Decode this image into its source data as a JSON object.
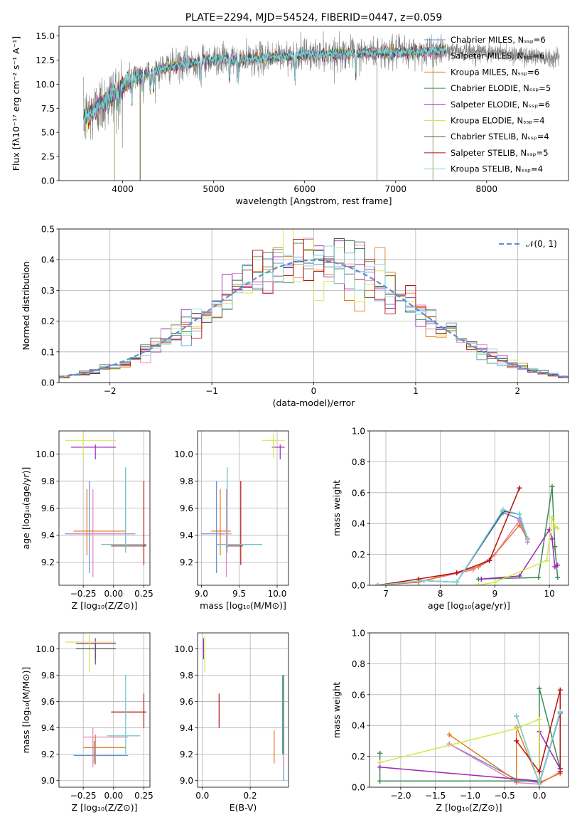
{
  "chart_data": [
    {
      "id": "spectrum",
      "type": "line",
      "title": "PLATE=2294, MJD=54524, FIBERID=0447, z=0.059",
      "xlabel": "wavelength [Angstrom, rest frame]",
      "ylabel": "Flux [fλ10⁻¹⁷ erg cm⁻² s⁻¹ A⁻¹]",
      "xlim": [
        3300,
        8900
      ],
      "ylim": [
        0,
        16
      ],
      "xticks": [
        4000,
        5000,
        6000,
        7000,
        8000
      ],
      "yticks": [
        0.0,
        2.5,
        5.0,
        7.5,
        10.0,
        12.5,
        15.0
      ],
      "grid": false,
      "legend_position": "top-right",
      "legend": [
        {
          "label": "Chabrier MILES, Nₛₛₚ=6",
          "color": "#5b8fd6"
        },
        {
          "label": "Salpeter MILES, Nₛₛₚ=6",
          "color": "#e87fc0"
        },
        {
          "label": "Kroupa MILES, Nₛₛₚ=6",
          "color": "#e07a1f"
        },
        {
          "label": "Chabrier ELODIE, Nₛₛₚ=5",
          "color": "#3e8a55"
        },
        {
          "label": "Salpeter ELODIE, Nₛₛₚ=6",
          "color": "#9b2ab5"
        },
        {
          "label": "Kroupa ELODIE, Nₛₛₚ=4",
          "color": "#d4e84a"
        },
        {
          "label": "Chabrier STELIB, Nₛₛₚ=4",
          "color": "#505050"
        },
        {
          "label": "Salpeter STELIB, Nₛₛₚ=5",
          "color": "#b5120e"
        },
        {
          "label": "Kroupa STELIB, Nₛₛₚ=4",
          "color": "#7fd6dc"
        }
      ],
      "continuum": {
        "x": [
          3570,
          3650,
          3750,
          3850,
          3950,
          4050,
          4150,
          4300,
          4500,
          4700,
          4900,
          5100,
          5300,
          5600,
          5900,
          6200,
          6500,
          6800,
          7100,
          7400,
          7600,
          7800,
          8000,
          8200,
          8400,
          8600,
          8800
        ],
        "y": [
          6.3,
          7.0,
          7.8,
          8.6,
          9.4,
          10.3,
          10.8,
          11.2,
          11.8,
          12.1,
          12.5,
          12.6,
          12.5,
          12.8,
          13.0,
          13.1,
          13.2,
          13.3,
          13.3,
          13.4,
          13.5,
          13.4,
          13.3,
          13.2,
          13.0,
          12.9,
          12.8
        ]
      }
    },
    {
      "id": "residuals",
      "type": "histogram",
      "xlabel": "(data-model)/error",
      "ylabel": "Normed distribution",
      "xlim": [
        -2.5,
        2.5
      ],
      "ylim": [
        0,
        0.5
      ],
      "xticks": [
        -2,
        -1,
        0,
        1,
        2
      ],
      "yticks": [
        0.0,
        0.1,
        0.2,
        0.3,
        0.4,
        0.5
      ],
      "grid": true,
      "legend_position": "top-right",
      "legend": [
        {
          "label": "𝒩(0, 1)",
          "color": "#5b8fd6"
        }
      ],
      "bins": 50,
      "series_colors": [
        "#5b8fd6",
        "#e87fc0",
        "#e07a1f",
        "#3e8a55",
        "#9b2ab5",
        "#d4e84a",
        "#505050",
        "#b5120e",
        "#7fd6dc"
      ]
    },
    {
      "id": "age-vs-Z",
      "type": "errorbar",
      "xlabel": "Z [log₁₀(Z/Z⊙)]",
      "ylabel": "age  [log₁₀(age/yr)]",
      "xlim": [
        -0.45,
        0.3
      ],
      "ylim": [
        9.03,
        10.17
      ],
      "xticks": [
        -0.25,
        0.0,
        0.25
      ],
      "xticklabels": [
        "−0.25",
        "0.00",
        "0.25"
      ],
      "yticks": [
        9.2,
        9.4,
        9.6,
        9.8,
        10.0
      ],
      "grid": true,
      "points": [
        {
          "color": "#5b8fd6",
          "x": -0.2,
          "y": 9.41,
          "x_lo": -0.4,
          "x_hi": 0.18,
          "y_lo": 9.12,
          "y_hi": 9.8
        },
        {
          "color": "#e87fc0",
          "x": -0.17,
          "y": 9.41,
          "x_lo": -0.37,
          "x_hi": 0.18,
          "y_lo": 9.09,
          "y_hi": 9.74
        },
        {
          "color": "#e07a1f",
          "x": -0.22,
          "y": 9.43,
          "x_lo": -0.33,
          "x_hi": 0.1,
          "y_lo": 9.25,
          "y_hi": 9.74
        },
        {
          "color": "#3e8a55",
          "x": 0.1,
          "y": 9.33,
          "x_lo": -0.1,
          "x_hi": 0.27,
          "y_lo": 9.27,
          "y_hi": 9.9
        },
        {
          "color": "#9b2ab5",
          "x": -0.15,
          "y": 10.05,
          "x_lo": -0.35,
          "x_hi": 0.02,
          "y_lo": 9.96,
          "y_hi": 10.07
        },
        {
          "color": "#d4e84a",
          "x": -0.25,
          "y": 10.1,
          "x_lo": -0.4,
          "x_hi": 0.02,
          "y_lo": 9.97,
          "y_hi": 10.15
        },
        {
          "color": "#505050",
          "x": 0.1,
          "y": 9.33,
          "x_lo": -0.1,
          "x_hi": 0.25,
          "y_lo": 9.28,
          "y_hi": 9.9
        },
        {
          "color": "#b5120e",
          "x": 0.25,
          "y": 9.32,
          "x_lo": -0.02,
          "x_hi": 0.27,
          "y_lo": 9.18,
          "y_hi": 9.8
        },
        {
          "color": "#7fd6dc",
          "x": 0.1,
          "y": 9.33,
          "x_lo": -0.1,
          "x_hi": 0.25,
          "y_lo": 9.27,
          "y_hi": 9.9
        }
      ]
    },
    {
      "id": "age-vs-mass",
      "type": "errorbar",
      "xlabel": "mass [log₁₀(M/M⊙)]",
      "ylabel": "",
      "xlim": [
        8.95,
        10.15
      ],
      "ylim": [
        9.03,
        10.17
      ],
      "xticks": [
        9.0,
        9.5,
        10.0
      ],
      "yticks": [
        9.2,
        9.4,
        9.6,
        9.8,
        10.0
      ],
      "grid": true,
      "points": [
        {
          "color": "#5b8fd6",
          "x": 9.2,
          "y": 9.41,
          "x_lo": 9.0,
          "x_hi": 9.3,
          "y_lo": 9.12,
          "y_hi": 9.8
        },
        {
          "color": "#e87fc0",
          "x": 9.33,
          "y": 9.41,
          "x_lo": 9.2,
          "x_hi": 9.4,
          "y_lo": 9.09,
          "y_hi": 9.74
        },
        {
          "color": "#e07a1f",
          "x": 9.25,
          "y": 9.43,
          "x_lo": 9.13,
          "x_hi": 9.39,
          "y_lo": 9.25,
          "y_hi": 9.74
        },
        {
          "color": "#3e8a55",
          "x": 9.34,
          "y": 9.33,
          "x_lo": 9.2,
          "x_hi": 9.8,
          "y_lo": 9.27,
          "y_hi": 9.9
        },
        {
          "color": "#9b2ab5",
          "x": 10.04,
          "y": 10.05,
          "x_lo": 9.93,
          "x_hi": 10.1,
          "y_lo": 9.96,
          "y_hi": 10.07
        },
        {
          "color": "#d4e84a",
          "x": 9.95,
          "y": 10.1,
          "x_lo": 9.8,
          "x_hi": 10.1,
          "y_lo": 9.97,
          "y_hi": 10.15
        },
        {
          "color": "#505050",
          "x": 9.34,
          "y": 9.33,
          "x_lo": 9.2,
          "x_hi": 9.8,
          "y_lo": 9.28,
          "y_hi": 9.9
        },
        {
          "color": "#b5120e",
          "x": 9.52,
          "y": 9.32,
          "x_lo": 9.33,
          "x_hi": 9.55,
          "y_lo": 9.18,
          "y_hi": 9.8
        },
        {
          "color": "#7fd6dc",
          "x": 9.34,
          "y": 9.33,
          "x_lo": 9.2,
          "x_hi": 9.8,
          "y_lo": 9.27,
          "y_hi": 9.9
        }
      ]
    },
    {
      "id": "weight-vs-age",
      "type": "line",
      "xlabel": "age  [log₁₀(age/yr)]",
      "ylabel": "mass weight",
      "xlim": [
        6.7,
        10.35
      ],
      "ylim": [
        0,
        1
      ],
      "xticks": [
        7,
        8,
        9,
        10
      ],
      "yticks": [
        0.0,
        0.2,
        0.4,
        0.6,
        0.8,
        1.0
      ],
      "grid": true,
      "series": [
        {
          "color": "#5b8fd6",
          "x": [
            6.85,
            7.7,
            8.3,
            9.15,
            9.45,
            9.6
          ],
          "y": [
            0.0,
            0.03,
            0.02,
            0.47,
            0.43,
            0.3
          ]
        },
        {
          "color": "#e87fc0",
          "x": [
            6.85,
            7.7,
            8.6,
            9.0,
            9.45,
            9.6
          ],
          "y": [
            0.0,
            0.03,
            0.1,
            0.2,
            0.42,
            0.28
          ]
        },
        {
          "color": "#e07a1f",
          "x": [
            6.85,
            7.6,
            8.7,
            8.9,
            9.45,
            9.6
          ],
          "y": [
            0.0,
            0.02,
            0.12,
            0.16,
            0.39,
            0.3
          ]
        },
        {
          "color": "#3e8a55",
          "x": [
            8.7,
            9.8,
            10.05,
            10.1,
            10.15
          ],
          "y": [
            0.04,
            0.05,
            0.64,
            0.25,
            0.05
          ]
        },
        {
          "color": "#9b2ab5",
          "x": [
            8.75,
            9.45,
            10.0,
            10.05,
            10.1,
            10.15
          ],
          "y": [
            0.04,
            0.06,
            0.36,
            0.3,
            0.12,
            0.13
          ]
        },
        {
          "color": "#d4e84a",
          "x": [
            8.7,
            9.0,
            9.95,
            10.05,
            10.1,
            10.15
          ],
          "y": [
            0.0,
            0.02,
            0.16,
            0.44,
            0.38,
            0.37
          ]
        },
        {
          "color": "#505050",
          "x": [
            6.85,
            7.7,
            8.3,
            9.15,
            9.45,
            9.6
          ],
          "y": [
            0.0,
            0.03,
            0.02,
            0.48,
            0.46,
            0.3
          ]
        },
        {
          "color": "#b5120e",
          "x": [
            6.85,
            7.6,
            8.3,
            8.9,
            9.45
          ],
          "y": [
            0.0,
            0.04,
            0.08,
            0.16,
            0.63
          ]
        },
        {
          "color": "#7fd6dc",
          "x": [
            6.85,
            7.7,
            8.3,
            9.15,
            9.45,
            9.6
          ],
          "y": [
            0.0,
            0.03,
            0.02,
            0.49,
            0.46,
            0.3
          ]
        }
      ]
    },
    {
      "id": "mass-vs-Z",
      "type": "errorbar",
      "xlabel": "Z [log₁₀(Z/Z⊙)]",
      "ylabel": "mass [log₁₀(M/M⊙)]",
      "xlim": [
        -0.45,
        0.3
      ],
      "ylim": [
        8.95,
        10.12
      ],
      "xticks": [
        -0.25,
        0.0,
        0.25
      ],
      "xticklabels": [
        "−0.25",
        "0.00",
        "0.25"
      ],
      "yticks": [
        9.0,
        9.2,
        9.4,
        9.6,
        9.8,
        10.0
      ],
      "grid": true,
      "points": [
        {
          "color": "#5b8fd6",
          "x": -0.16,
          "y": 9.19,
          "x_lo": -0.33,
          "x_hi": 0.12,
          "y_lo": 9.13,
          "y_hi": 9.3
        },
        {
          "color": "#e87fc0",
          "x": -0.17,
          "y": 9.33,
          "x_lo": -0.25,
          "x_hi": 0.12,
          "y_lo": 9.1,
          "y_hi": 9.4
        },
        {
          "color": "#e07a1f",
          "x": -0.15,
          "y": 9.25,
          "x_lo": -0.25,
          "x_hi": 0.1,
          "y_lo": 9.12,
          "y_hi": 9.35
        },
        {
          "color": "#3e8a55",
          "x": 0.1,
          "y": 9.34,
          "x_lo": -0.05,
          "x_hi": 0.22,
          "y_lo": 9.2,
          "y_hi": 9.8
        },
        {
          "color": "#9b2ab5",
          "x": -0.15,
          "y": 10.04,
          "x_lo": -0.31,
          "x_hi": 0.02,
          "y_lo": 9.92,
          "y_hi": 10.08
        },
        {
          "color": "#d4e84a",
          "x": -0.2,
          "y": 10.05,
          "x_lo": -0.4,
          "x_hi": 0.02,
          "y_lo": 9.82,
          "y_hi": 10.11
        },
        {
          "color": "#505050",
          "x": -0.15,
          "y": 10.0,
          "x_lo": -0.31,
          "x_hi": 0.02,
          "y_lo": 9.88,
          "y_hi": 10.04
        },
        {
          "color": "#b5120e",
          "x": 0.25,
          "y": 9.52,
          "x_lo": -0.02,
          "x_hi": 0.27,
          "y_lo": 9.4,
          "y_hi": 9.66
        },
        {
          "color": "#7fd6dc",
          "x": 0.1,
          "y": 9.34,
          "x_lo": -0.05,
          "x_hi": 0.22,
          "y_lo": 9.2,
          "y_hi": 9.8
        }
      ]
    },
    {
      "id": "mass-vs-ebv",
      "type": "errorbar",
      "xlabel": "E(B-V)",
      "ylabel": "",
      "xlim": [
        -0.02,
        0.36
      ],
      "ylim": [
        8.95,
        10.12
      ],
      "xticks": [
        0.0,
        0.2
      ],
      "xticklabels": [
        "0.0",
        "0.2"
      ],
      "yticks": [
        9.0,
        9.2,
        9.4,
        9.6,
        9.8,
        10.0
      ],
      "grid": true,
      "points": [
        {
          "color": "#5b8fd6",
          "x": 0.34,
          "y": 9.19,
          "y_lo": 9.0,
          "y_hi": 9.3
        },
        {
          "color": "#e87fc0",
          "x": 0.34,
          "y": 9.33,
          "y_lo": 9.1,
          "y_hi": 9.4
        },
        {
          "color": "#e07a1f",
          "x": 0.3,
          "y": 9.25,
          "y_lo": 9.13,
          "y_hi": 9.38
        },
        {
          "color": "#3e8a55",
          "x": 0.335,
          "y": 9.5,
          "y_lo": 9.2,
          "y_hi": 9.8
        },
        {
          "color": "#9b2ab5",
          "x": 0.005,
          "y": 10.0,
          "y_lo": 9.92,
          "y_hi": 10.08
        },
        {
          "color": "#d4e84a",
          "x": 0.01,
          "y": 9.95,
          "y_lo": 9.82,
          "y_hi": 10.1
        },
        {
          "color": "#505050",
          "x": 0.34,
          "y": 9.5,
          "y_lo": 9.2,
          "y_hi": 9.8
        },
        {
          "color": "#b5120e",
          "x": 0.07,
          "y": 9.52,
          "y_lo": 9.4,
          "y_hi": 9.66
        },
        {
          "color": "#7fd6dc",
          "x": 0.337,
          "y": 9.5,
          "y_lo": 9.2,
          "y_hi": 9.8
        }
      ]
    },
    {
      "id": "weight-vs-Z",
      "type": "line",
      "xlabel": "Z [log₁₀(Z/Z⊙)]",
      "ylabel": "mass weight",
      "xlim": [
        -2.45,
        0.42
      ],
      "ylim": [
        0,
        1
      ],
      "xticks": [
        -2.0,
        -1.5,
        -1.0,
        -0.5,
        0.0
      ],
      "xticklabels": [
        "−2.0",
        "−1.5",
        "−1.0",
        "−0.5",
        "0.0"
      ],
      "yticks": [
        0.0,
        0.2,
        0.4,
        0.6,
        0.8,
        1.0
      ],
      "grid": true,
      "series": [
        {
          "color": "#5b8fd6",
          "x": [
            -1.3,
            -0.33,
            0.0,
            0.3
          ],
          "y": [
            0.28,
            0.05,
            0.03,
            0.49
          ]
        },
        {
          "color": "#e87fc0",
          "x": [
            -1.3,
            -0.33,
            0.0,
            0.3
          ],
          "y": [
            0.28,
            0.03,
            0.02,
            0.1
          ]
        },
        {
          "color": "#e07a1f",
          "x": [
            -1.3,
            -0.33,
            -0.33,
            0.0,
            0.3
          ],
          "y": [
            0.34,
            0.04,
            0.39,
            0.03,
            0.09
          ]
        },
        {
          "color": "#3e8a55",
          "x": [
            -2.3,
            -2.3,
            -0.0,
            0.0,
            0.3
          ],
          "y": [
            0.22,
            0.04,
            0.04,
            0.64,
            0.12
          ]
        },
        {
          "color": "#9b2ab5",
          "x": [
            -2.3,
            -0.0,
            0.0,
            0.3
          ],
          "y": [
            0.13,
            0.04,
            0.36,
            0.12
          ]
        },
        {
          "color": "#d4e84a",
          "x": [
            -2.3,
            -0.33,
            0.0,
            0.0
          ],
          "y": [
            0.16,
            0.38,
            0.44,
            0.0
          ]
        },
        {
          "color": "#505050",
          "x": [
            -0.33,
            0.0,
            0.3
          ],
          "y": [
            0.46,
            0.02,
            0.48
          ]
        },
        {
          "color": "#b5120e",
          "x": [
            -0.33,
            0.0,
            0.3,
            0.3
          ],
          "y": [
            0.3,
            0.1,
            0.63,
            0.1
          ]
        },
        {
          "color": "#7fd6dc",
          "x": [
            -0.33,
            0.0,
            0.3
          ],
          "y": [
            0.46,
            0.02,
            0.49
          ]
        }
      ]
    }
  ]
}
